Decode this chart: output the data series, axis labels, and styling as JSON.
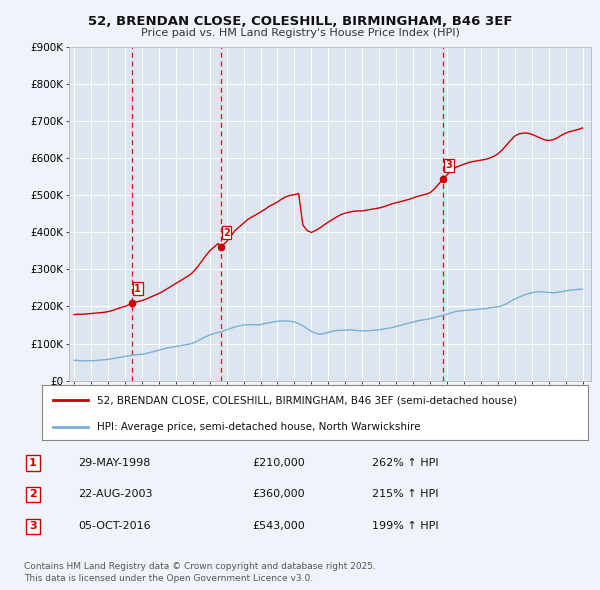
{
  "title": "52, BRENDAN CLOSE, COLESHILL, BIRMINGHAM, B46 3EF",
  "subtitle": "Price paid vs. HM Land Registry's House Price Index (HPI)",
  "background_color": "#f0f4fa",
  "plot_bg_color": "#dde6f0",
  "grid_color": "#ffffff",
  "ylim": [
    0,
    900000
  ],
  "yticks": [
    0,
    100000,
    200000,
    300000,
    400000,
    500000,
    600000,
    700000,
    800000,
    900000
  ],
  "ytick_labels": [
    "£0",
    "£100K",
    "£200K",
    "£300K",
    "£400K",
    "£500K",
    "£600K",
    "£700K",
    "£800K",
    "£900K"
  ],
  "xlim_start": 1994.7,
  "xlim_end": 2025.5,
  "xticks": [
    1995,
    1996,
    1997,
    1998,
    1999,
    2000,
    2001,
    2002,
    2003,
    2004,
    2005,
    2006,
    2007,
    2008,
    2009,
    2010,
    2011,
    2012,
    2013,
    2014,
    2015,
    2016,
    2017,
    2018,
    2019,
    2020,
    2021,
    2022,
    2023,
    2024,
    2025
  ],
  "sale_color": "#cc0000",
  "hpi_color": "#7ab0d4",
  "vline_color": "#cc0000",
  "label_color": "#cc0000",
  "legend_sale_label": "52, BRENDAN CLOSE, COLESHILL, BIRMINGHAM, B46 3EF (semi-detached house)",
  "legend_hpi_label": "HPI: Average price, semi-detached house, North Warwickshire",
  "sale_points": [
    {
      "year": 1998.41,
      "price": 210000,
      "label": "1"
    },
    {
      "year": 2003.65,
      "price": 360000,
      "label": "2"
    },
    {
      "year": 2016.76,
      "price": 543000,
      "label": "3"
    }
  ],
  "vlines": [
    1998.41,
    2003.65,
    2016.76
  ],
  "table_rows": [
    {
      "num": "1",
      "date": "29-MAY-1998",
      "price": "£210,000",
      "hpi": "262% ↑ HPI"
    },
    {
      "num": "2",
      "date": "22-AUG-2003",
      "price": "£360,000",
      "hpi": "215% ↑ HPI"
    },
    {
      "num": "3",
      "date": "05-OCT-2016",
      "price": "£543,000",
      "hpi": "199% ↑ HPI"
    }
  ],
  "footnote": "Contains HM Land Registry data © Crown copyright and database right 2025.\nThis data is licensed under the Open Government Licence v3.0.",
  "hpi_data": {
    "years": [
      1995.0,
      1995.25,
      1995.5,
      1995.75,
      1996.0,
      1996.25,
      1996.5,
      1996.75,
      1997.0,
      1997.25,
      1997.5,
      1997.75,
      1998.0,
      1998.25,
      1998.5,
      1998.75,
      1999.0,
      1999.25,
      1999.5,
      1999.75,
      2000.0,
      2000.25,
      2000.5,
      2000.75,
      2001.0,
      2001.25,
      2001.5,
      2001.75,
      2002.0,
      2002.25,
      2002.5,
      2002.75,
      2003.0,
      2003.25,
      2003.5,
      2003.75,
      2004.0,
      2004.25,
      2004.5,
      2004.75,
      2005.0,
      2005.25,
      2005.5,
      2005.75,
      2006.0,
      2006.25,
      2006.5,
      2006.75,
      2007.0,
      2007.25,
      2007.5,
      2007.75,
      2008.0,
      2008.25,
      2008.5,
      2008.75,
      2009.0,
      2009.25,
      2009.5,
      2009.75,
      2010.0,
      2010.25,
      2010.5,
      2010.75,
      2011.0,
      2011.25,
      2011.5,
      2011.75,
      2012.0,
      2012.25,
      2012.5,
      2012.75,
      2013.0,
      2013.25,
      2013.5,
      2013.75,
      2014.0,
      2014.25,
      2014.5,
      2014.75,
      2015.0,
      2015.25,
      2015.5,
      2015.75,
      2016.0,
      2016.25,
      2016.5,
      2016.75,
      2017.0,
      2017.25,
      2017.5,
      2017.75,
      2018.0,
      2018.25,
      2018.5,
      2018.75,
      2019.0,
      2019.25,
      2019.5,
      2019.75,
      2020.0,
      2020.25,
      2020.5,
      2020.75,
      2021.0,
      2021.25,
      2021.5,
      2021.75,
      2022.0,
      2022.25,
      2022.5,
      2022.75,
      2023.0,
      2023.25,
      2023.5,
      2023.75,
      2024.0,
      2024.25,
      2024.5,
      2024.75,
      2025.0
    ],
    "values": [
      55000,
      54000,
      53500,
      53000,
      53500,
      54000,
      55000,
      56000,
      57000,
      59000,
      61000,
      63000,
      65000,
      67000,
      69000,
      70000,
      71000,
      73000,
      76000,
      79000,
      82000,
      85000,
      88000,
      90000,
      92000,
      94000,
      96000,
      98000,
      101000,
      106000,
      112000,
      118000,
      123000,
      127000,
      130000,
      133000,
      137000,
      141000,
      145000,
      148000,
      150000,
      151000,
      151000,
      150000,
      151000,
      154000,
      156000,
      158000,
      160000,
      161000,
      161000,
      160000,
      158000,
      154000,
      148000,
      140000,
      133000,
      128000,
      125000,
      127000,
      130000,
      133000,
      135000,
      136000,
      136000,
      137000,
      136000,
      135000,
      134000,
      134000,
      135000,
      136000,
      137000,
      139000,
      141000,
      143000,
      146000,
      149000,
      152000,
      155000,
      158000,
      161000,
      163000,
      165000,
      167000,
      170000,
      173000,
      176000,
      179000,
      183000,
      186000,
      188000,
      189000,
      190000,
      191000,
      192000,
      193000,
      194000,
      196000,
      198000,
      199000,
      202000,
      207000,
      214000,
      220000,
      225000,
      230000,
      234000,
      237000,
      239000,
      240000,
      239000,
      238000,
      237000,
      238000,
      240000,
      242000,
      244000,
      245000,
      246000,
      247000
    ]
  },
  "property_data": {
    "years": [
      1995.0,
      1995.25,
      1995.5,
      1995.75,
      1996.0,
      1996.25,
      1996.5,
      1996.75,
      1997.0,
      1997.25,
      1997.5,
      1997.75,
      1998.0,
      1998.25,
      1998.41,
      1998.75,
      1999.0,
      1999.25,
      1999.5,
      1999.75,
      2000.0,
      2000.25,
      2000.5,
      2000.75,
      2001.0,
      2001.25,
      2001.5,
      2001.75,
      2002.0,
      2002.25,
      2002.5,
      2002.75,
      2003.0,
      2003.25,
      2003.5,
      2003.65,
      2003.75,
      2004.0,
      2004.25,
      2004.5,
      2004.75,
      2005.0,
      2005.25,
      2005.5,
      2005.75,
      2006.0,
      2006.25,
      2006.5,
      2006.75,
      2007.0,
      2007.25,
      2007.5,
      2007.75,
      2008.0,
      2008.25,
      2008.5,
      2008.75,
      2009.0,
      2009.25,
      2009.5,
      2009.75,
      2010.0,
      2010.25,
      2010.5,
      2010.75,
      2011.0,
      2011.25,
      2011.5,
      2011.75,
      2012.0,
      2012.25,
      2012.5,
      2012.75,
      2013.0,
      2013.25,
      2013.5,
      2013.75,
      2014.0,
      2014.25,
      2014.5,
      2014.75,
      2015.0,
      2015.25,
      2015.5,
      2015.75,
      2016.0,
      2016.25,
      2016.5,
      2016.76,
      2017.0,
      2017.25,
      2017.5,
      2017.75,
      2018.0,
      2018.25,
      2018.5,
      2018.75,
      2019.0,
      2019.25,
      2019.5,
      2019.75,
      2020.0,
      2020.25,
      2020.5,
      2020.75,
      2021.0,
      2021.25,
      2021.5,
      2021.75,
      2022.0,
      2022.25,
      2022.5,
      2022.75,
      2023.0,
      2023.25,
      2023.5,
      2023.75,
      2024.0,
      2024.25,
      2024.5,
      2024.75,
      2025.0
    ],
    "values": [
      178000,
      179000,
      179000,
      180000,
      181000,
      182000,
      183000,
      184000,
      186000,
      189000,
      193000,
      197000,
      200000,
      205000,
      210000,
      213000,
      216000,
      220000,
      225000,
      230000,
      235000,
      241000,
      248000,
      255000,
      262000,
      269000,
      276000,
      283000,
      292000,
      305000,
      320000,
      336000,
      350000,
      360000,
      370000,
      360000,
      365000,
      375000,
      390000,
      405000,
      415000,
      425000,
      435000,
      442000,
      448000,
      455000,
      462000,
      470000,
      476000,
      482000,
      490000,
      496000,
      500000,
      502000,
      505000,
      420000,
      405000,
      400000,
      405000,
      412000,
      420000,
      428000,
      435000,
      442000,
      448000,
      452000,
      455000,
      457000,
      458000,
      458000,
      460000,
      462000,
      464000,
      466000,
      469000,
      473000,
      477000,
      480000,
      483000,
      486000,
      489000,
      493000,
      497000,
      500000,
      503000,
      507000,
      517000,
      530000,
      543000,
      555000,
      567000,
      575000,
      580000,
      584000,
      588000,
      591000,
      593000,
      595000,
      597000,
      600000,
      605000,
      612000,
      622000,
      635000,
      648000,
      660000,
      666000,
      668000,
      668000,
      665000,
      660000,
      655000,
      650000,
      648000,
      650000,
      655000,
      662000,
      668000,
      672000,
      675000,
      678000,
      682000
    ]
  }
}
